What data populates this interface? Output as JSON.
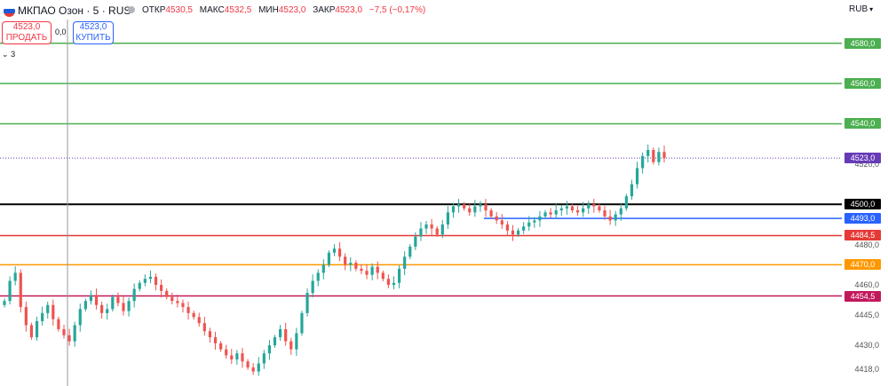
{
  "header": {
    "symbol": "МКПАО Озон · 5 · RUS",
    "ohlc": [
      {
        "label": "ОТКР",
        "value": "4530,5"
      },
      {
        "label": "МАКС",
        "value": "4532,5"
      },
      {
        "label": "МИН",
        "value": "4523,0"
      },
      {
        "label": "ЗАКР",
        "value": "4523,0"
      }
    ],
    "change": "−7,5 (−0,17%)",
    "currency": "RUB"
  },
  "trade": {
    "sell_price": "4523,0",
    "sell_label": "ПРОДАТЬ",
    "spread": "0,0",
    "buy_price": "4523,0",
    "buy_label": "КУПИТЬ"
  },
  "indicators_toggle": "3",
  "colors": {
    "up": "#26a69a",
    "down": "#ef5350",
    "level_green": "#4caf50",
    "level_black": "#000000",
    "level_blue": "#2962ff",
    "level_red": "#e53935",
    "level_orange": "#ff9800",
    "level_darkred": "#c2185b",
    "last_price": "#673ab7"
  },
  "chart_data": {
    "type": "candlestick",
    "interval": "5",
    "ylim": [
      4412,
      4590
    ],
    "last_price": 4523.0,
    "axis_ticks": [
      4520,
      4480,
      4460,
      4445,
      4430,
      4418
    ],
    "axis_labels": [
      "4520,0",
      "4480,0",
      "4460,0",
      "4445,0",
      "4430,0",
      "4418,0"
    ],
    "levels": [
      {
        "value": 4580.0,
        "label": "4580,0",
        "color": "#4caf50",
        "x_start": 0
      },
      {
        "value": 4560.0,
        "label": "4560,0",
        "color": "#4caf50",
        "x_start": 0
      },
      {
        "value": 4540.0,
        "label": "4540,0",
        "color": "#4caf50",
        "x_start": 0
      },
      {
        "value": 4500.0,
        "label": "4500,0",
        "color": "#000000",
        "x_start": 0
      },
      {
        "value": 4493.0,
        "label": "4493,0",
        "color": "#2962ff",
        "x_start": 545
      },
      {
        "value": 4484.5,
        "label": "4484,5",
        "color": "#e53935",
        "x_start": 0
      },
      {
        "value": 4470.0,
        "label": "4470,0",
        "color": "#ff9800",
        "x_start": 0
      },
      {
        "value": 4454.5,
        "label": "4454,5",
        "color": "#c2185b",
        "x_start": 0
      }
    ],
    "last_label": "4523,0",
    "closes": [
      4452,
      4462,
      4466,
      4449,
      4440,
      4434,
      4442,
      4446,
      4450,
      4443,
      4438,
      4435,
      4432,
      4440,
      4448,
      4452,
      4455,
      4450,
      4446,
      4448,
      4454,
      4451,
      4447,
      4452,
      4458,
      4461,
      4463,
      4464,
      4460,
      4457,
      4454,
      4452,
      4451,
      4449,
      4446,
      4444,
      4441,
      4437,
      4434,
      4431,
      4428,
      4425,
      4423,
      4426,
      4422,
      4419,
      4417,
      4421,
      4426,
      4430,
      4434,
      4438,
      4432,
      4428,
      4436,
      4446,
      4456,
      4462,
      4466,
      4470,
      4476,
      4478,
      4474,
      4470,
      4471,
      4468,
      4467,
      4465,
      4469,
      4466,
      4463,
      4460,
      4461,
      4468,
      4474,
      4479,
      4484,
      4488,
      4490,
      4488,
      4485,
      4490,
      4496,
      4499,
      4500,
      4498,
      4496,
      4499,
      4500,
      4497,
      4494,
      4492,
      4490,
      4487,
      4485,
      4487,
      4489,
      4491,
      4492,
      4494,
      4496,
      4495,
      4497,
      4498,
      4499,
      4497,
      4496,
      4498,
      4500,
      4499,
      4497,
      4494,
      4492,
      4495,
      4498,
      4504,
      4510,
      4518,
      4524,
      4527,
      4521,
      4526,
      4523
    ]
  }
}
